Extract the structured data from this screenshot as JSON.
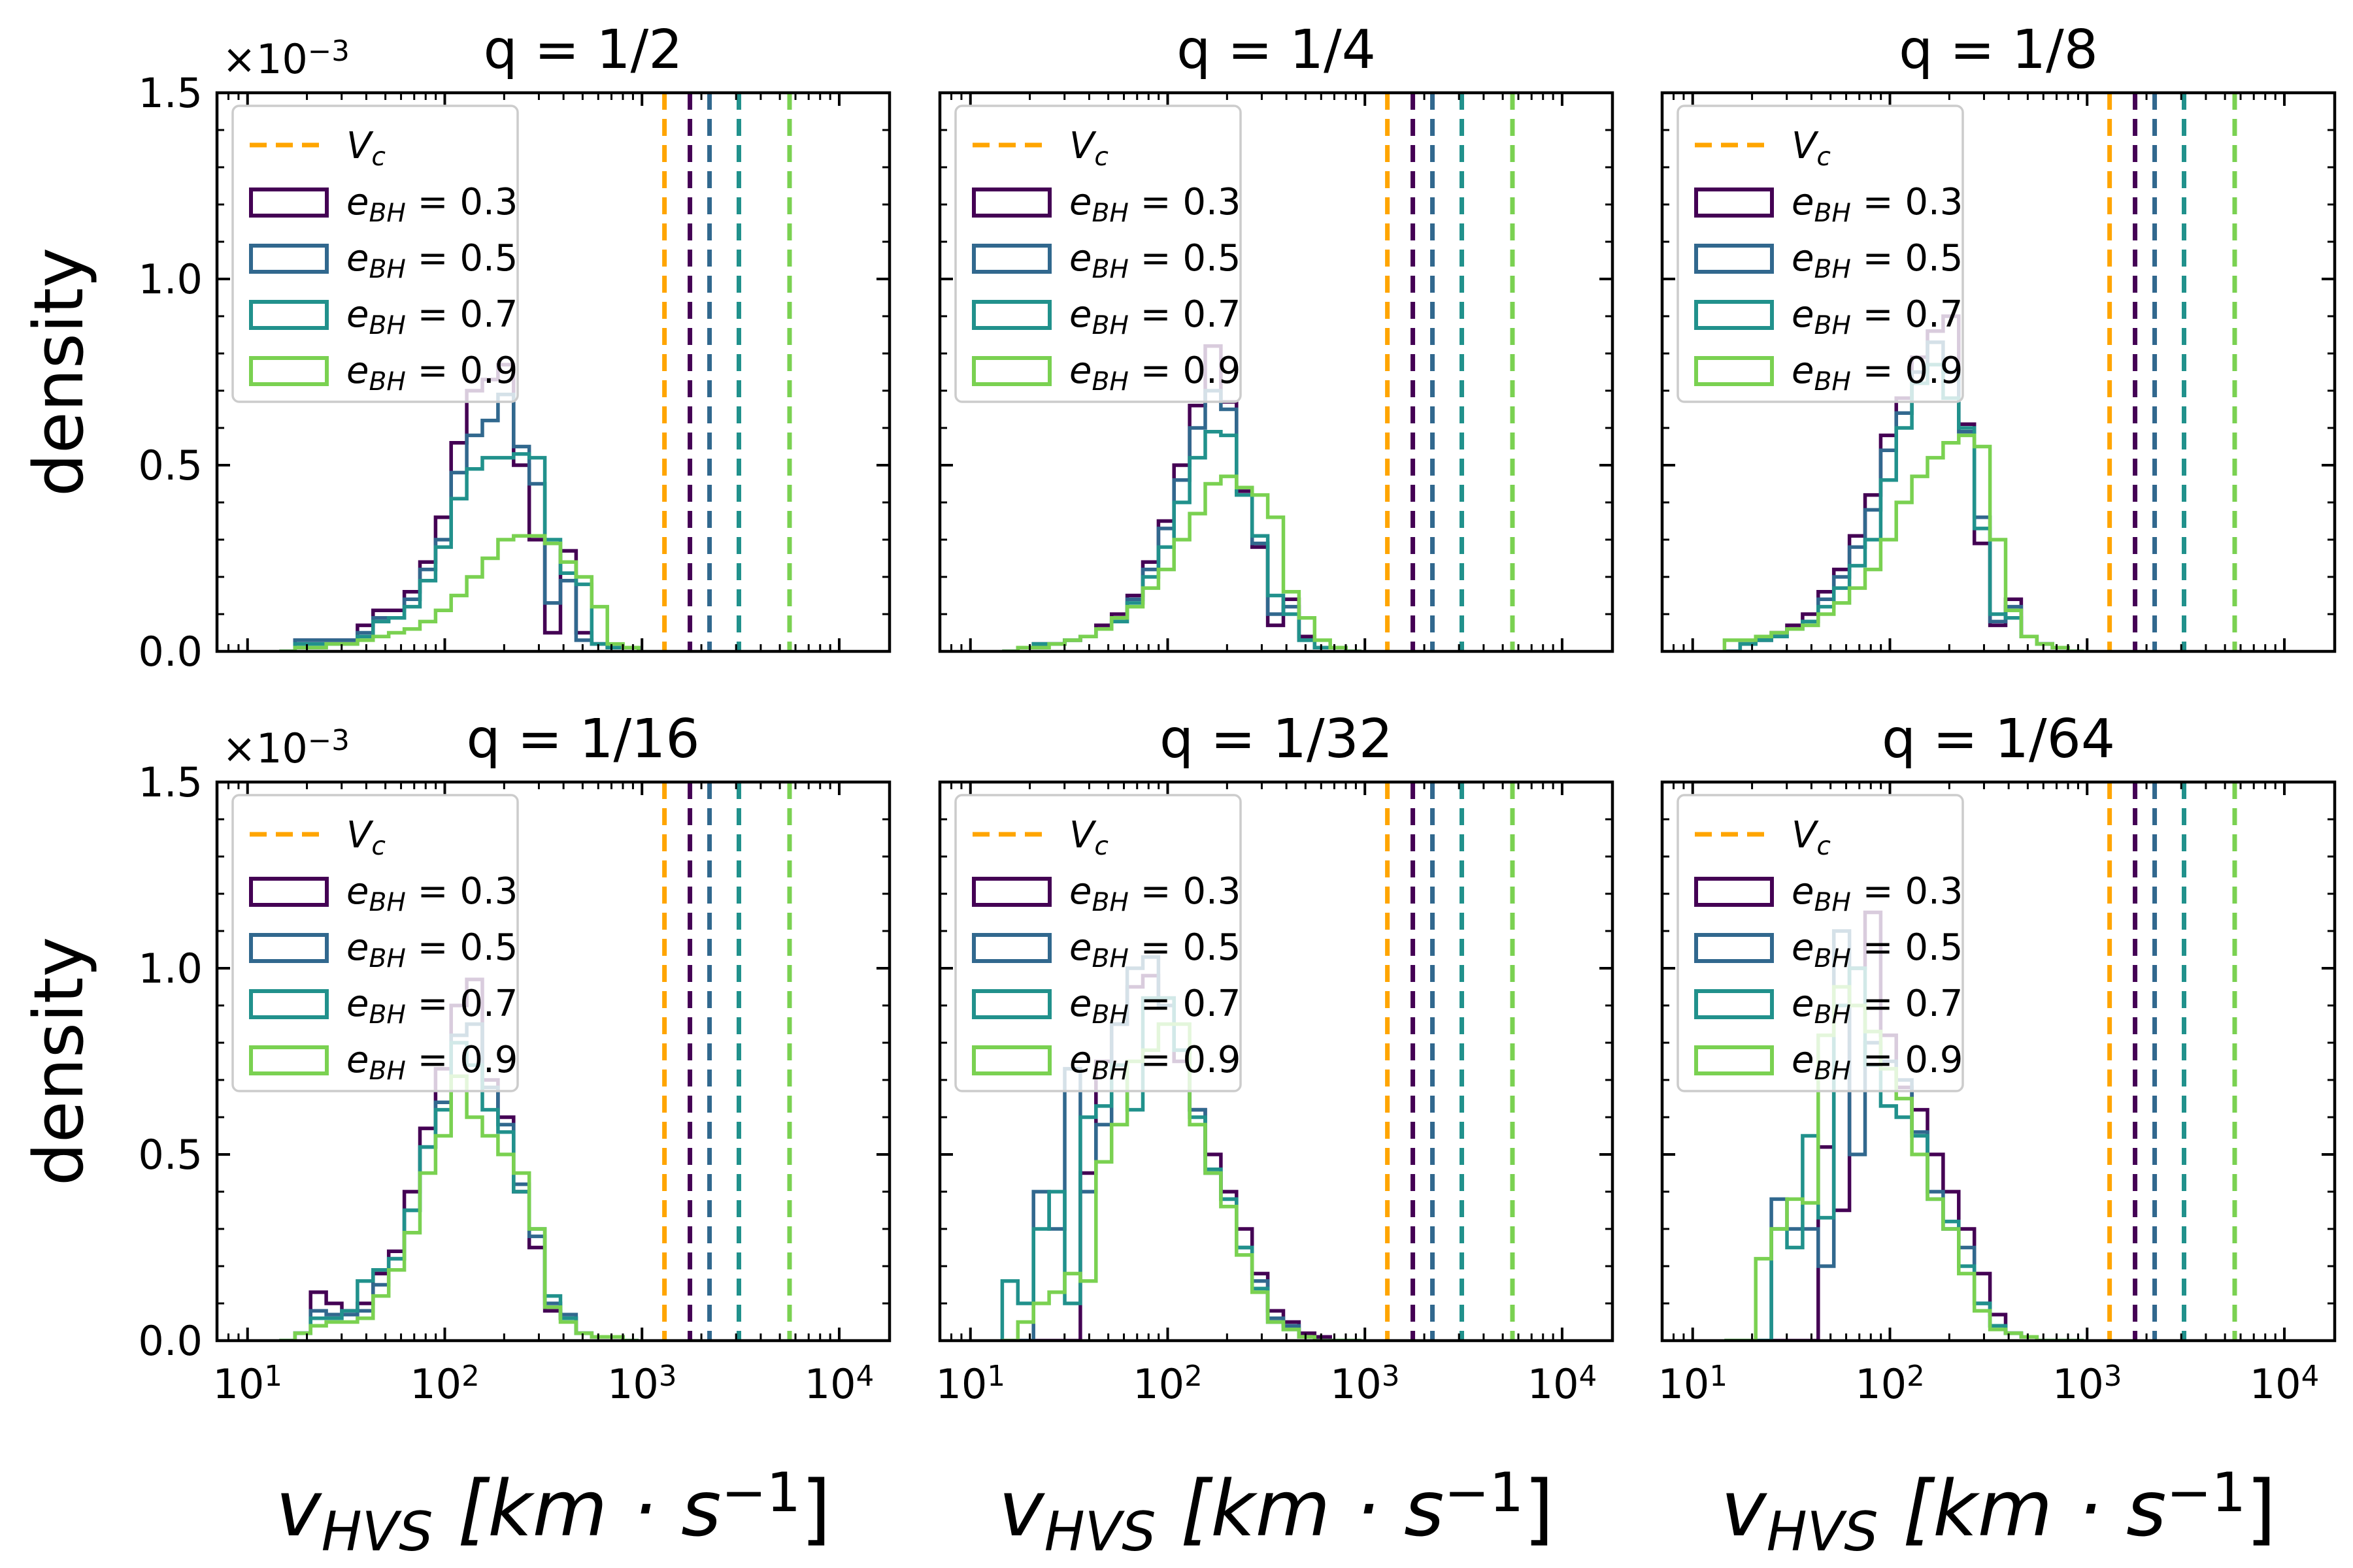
{
  "chart_data": {
    "type": "histogram-grid",
    "shared": {
      "xlabel": "v_HVS [km · s⁻¹]",
      "ylabel": "density",
      "xscale": "log",
      "xlim": [
        7,
        18000
      ],
      "ylim": [
        0,
        0.0015
      ],
      "y_scale_label": "×10⁻³",
      "xticks": [
        10,
        100,
        1000,
        10000
      ],
      "xtick_labels": [
        [
          "10",
          "1"
        ],
        [
          "10",
          "2"
        ],
        [
          "10",
          "3"
        ],
        [
          "10",
          "4"
        ]
      ],
      "yticks": [
        0,
        0.5,
        1.0,
        1.5
      ],
      "ytick_labels": [
        "0.0",
        "0.5",
        "1.0",
        "1.5"
      ],
      "legend_location": "upper-left",
      "legend_entries": [
        {
          "label": "V_c",
          "kind": "line",
          "color": "#FFA500"
        },
        {
          "label": "e_BH = 0.3",
          "kind": "patch",
          "color": "#440154"
        },
        {
          "label": "e_BH = 0.5",
          "kind": "patch",
          "color": "#31688E"
        },
        {
          "label": "e_BH = 0.7",
          "kind": "patch",
          "color": "#21918C"
        },
        {
          "label": "e_BH = 0.9",
          "kind": "patch",
          "color": "#7AD151"
        }
      ],
      "series_names": [
        "e_BH = 0.3",
        "e_BH = 0.5",
        "e_BH = 0.7",
        "e_BH = 0.9"
      ],
      "series_colors": [
        "#440154",
        "#31688E",
        "#21918C",
        "#7AD151"
      ],
      "vlines": [
        {
          "name": "V_c",
          "x": 1300,
          "color": "#FFA500"
        },
        {
          "name": "e_BH = 0.3",
          "x": 1750,
          "color": "#440154"
        },
        {
          "name": "e_BH = 0.5",
          "x": 2200,
          "color": "#31688E"
        },
        {
          "name": "e_BH = 0.7",
          "x": 3100,
          "color": "#21918C"
        },
        {
          "name": "e_BH = 0.9",
          "x": 5600,
          "color": "#7AD151"
        }
      ]
    },
    "panels": [
      {
        "title": "q = 1/2",
        "show_scale": true,
        "show_ylabels": true,
        "x_start": 14.5,
        "bin_ratio": 1.2,
        "series": [
          [
            0,
            3e-05,
            3e-05,
            3e-05,
            3e-05,
            7e-05,
            0.00011,
            0.00011,
            0.00016,
            0.00024,
            0.00036,
            0.00056,
            0.0007,
            0.00073,
            0.00077,
            0.0005,
            0.0003,
            5e-05,
            0.00027,
            5e-05,
            2e-05,
            1e-05,
            1e-05
          ],
          [
            0,
            3e-05,
            3e-05,
            3e-05,
            3e-05,
            5e-05,
            9e-05,
            9e-05,
            0.00014,
            0.00022,
            0.0003,
            0.00048,
            0.00058,
            0.00062,
            0.00069,
            0.00055,
            0.00045,
            0.00013,
            0.00019,
            3e-05,
            2e-05,
            1e-05,
            1e-05
          ],
          [
            0,
            2e-05,
            2e-05,
            2e-05,
            2e-05,
            4e-05,
            8e-05,
            9e-05,
            0.00012,
            0.00019,
            0.00028,
            0.00041,
            0.00049,
            0.00052,
            0.00052,
            0.00053,
            0.00052,
            0.0003,
            0.00021,
            0.00018,
            2e-05,
            1e-05,
            1e-05
          ],
          [
            0,
            1e-05,
            1e-05,
            2e-05,
            2e-05,
            3e-05,
            4e-05,
            5e-05,
            6e-05,
            8e-05,
            0.00011,
            0.00015,
            0.0002,
            0.00025,
            0.0003,
            0.00031,
            0.00031,
            0.00029,
            0.00024,
            0.0002,
            0.00012,
            2e-05,
            1e-05
          ]
        ]
      },
      {
        "title": "q = 1/4",
        "show_scale": false,
        "show_ylabels": false,
        "x_start": 14.5,
        "bin_ratio": 1.2,
        "series": [
          [
            0,
            1e-05,
            2e-05,
            2e-05,
            3e-05,
            4e-05,
            7e-05,
            0.0001,
            0.00015,
            0.00024,
            0.00035,
            0.0005,
            0.00066,
            0.00082,
            0.00067,
            0.00043,
            0.00028,
            7e-05,
            0.00014,
            4e-05,
            1e-05,
            1e-05,
            0
          ],
          [
            0,
            1e-05,
            2e-05,
            2e-05,
            3e-05,
            4e-05,
            6e-05,
            9e-05,
            0.00014,
            0.00022,
            0.00033,
            0.00046,
            0.0006,
            0.0007,
            0.00065,
            0.00044,
            0.00029,
            0.0001,
            0.00012,
            3e-05,
            1e-05,
            1e-05,
            0
          ],
          [
            0,
            1e-05,
            2e-05,
            2e-05,
            3e-05,
            4e-05,
            6e-05,
            8e-05,
            0.00013,
            0.0002,
            0.00028,
            0.0004,
            0.00052,
            0.00059,
            0.00058,
            0.00042,
            0.00031,
            0.00015,
            0.0001,
            3e-05,
            1e-05,
            1e-05,
            0
          ],
          [
            0,
            1e-05,
            1e-05,
            2e-05,
            3e-05,
            4e-05,
            6e-05,
            9e-05,
            0.00012,
            0.00017,
            0.00022,
            0.0003,
            0.00037,
            0.00045,
            0.00047,
            0.00044,
            0.00042,
            0.00036,
            0.00016,
            9e-05,
            3e-05,
            1e-05,
            0
          ]
        ]
      },
      {
        "title": "q = 1/8",
        "show_scale": false,
        "show_ylabels": false,
        "x_start": 14.5,
        "bin_ratio": 1.2,
        "series": [
          [
            0,
            2e-05,
            3e-05,
            5e-05,
            7e-05,
            0.0001,
            0.00016,
            0.00022,
            0.00031,
            0.00042,
            0.00058,
            0.00068,
            0.00079,
            0.00086,
            0.0009,
            0.00061,
            0.00029,
            7e-05,
            0.00014,
            4e-05,
            2e-05,
            1e-05,
            0
          ],
          [
            0,
            2e-05,
            3e-05,
            4e-05,
            6e-05,
            8e-05,
            0.00014,
            0.0002,
            0.00028,
            0.00038,
            0.00054,
            0.00064,
            0.00075,
            0.00083,
            0.00075,
            0.00059,
            0.00036,
            8e-05,
            0.00012,
            4e-05,
            2e-05,
            1e-05,
            0
          ],
          [
            0,
            2e-05,
            3e-05,
            4e-05,
            6e-05,
            8e-05,
            0.00012,
            0.00017,
            0.00023,
            0.0003,
            0.00046,
            0.0006,
            0.00072,
            0.00077,
            0.00068,
            0.0006,
            0.00033,
            0.0001,
            9e-05,
            4e-05,
            2e-05,
            1e-05,
            0
          ],
          [
            3e-05,
            3e-05,
            4e-05,
            5e-05,
            6e-05,
            7e-05,
            0.0001,
            0.00013,
            0.00017,
            0.00022,
            0.0003,
            0.0004,
            0.00047,
            0.00052,
            0.00056,
            0.00058,
            0.00055,
            0.0003,
            0.00011,
            4e-05,
            2e-05,
            1e-05,
            0
          ]
        ]
      },
      {
        "title": "q = 1/16",
        "show_scale": true,
        "show_ylabels": true,
        "x_start": 14.5,
        "bin_ratio": 1.2,
        "series": [
          [
            0,
            2e-05,
            0.00013,
            0.0001,
            8e-05,
            0.0001,
            0.00018,
            0.00024,
            0.0004,
            0.00057,
            0.00073,
            0.0009,
            0.00097,
            0.0007,
            0.0006,
            0.0004,
            0.00025,
            8e-05,
            6e-05,
            2e-05,
            1e-05,
            1e-05,
            0
          ],
          [
            0,
            2e-05,
            8e-05,
            7e-05,
            7e-05,
            8e-05,
            0.00015,
            0.00022,
            0.00035,
            0.00052,
            0.00064,
            0.00082,
            0.00085,
            0.00068,
            0.00058,
            0.00042,
            0.00028,
            0.0001,
            7e-05,
            2e-05,
            1e-05,
            1e-05,
            0
          ],
          [
            0,
            2e-05,
            6e-05,
            6e-05,
            8e-05,
            0.00016,
            0.00019,
            0.00022,
            0.00035,
            0.00052,
            0.00062,
            0.0008,
            0.00074,
            0.00062,
            0.00056,
            0.0004,
            0.0003,
            0.00012,
            6e-05,
            2e-05,
            1e-05,
            1e-05,
            0
          ],
          [
            0,
            2e-05,
            4e-05,
            5e-05,
            5e-05,
            6e-05,
            0.00012,
            0.00019,
            0.00029,
            0.00045,
            0.00055,
            0.00071,
            0.0006,
            0.00055,
            0.0005,
            0.00045,
            0.0003,
            9e-05,
            5e-05,
            2e-05,
            1e-05,
            1e-05,
            0
          ]
        ]
      },
      {
        "title": "q = 1/32",
        "show_scale": false,
        "show_ylabels": false,
        "x_start": 14.5,
        "bin_ratio": 1.2,
        "series": [
          [
            0,
            0,
            0,
            0,
            0,
            0.00045,
            0.00075,
            0.00085,
            0.00095,
            0.00098,
            0.00092,
            0.00075,
            0.00062,
            0.0005,
            0.0004,
            0.0003,
            0.00018,
            8e-05,
            5e-05,
            2e-05,
            1e-05,
            0,
            0
          ],
          [
            0,
            0,
            0.0004,
            0.0003,
            0.00073,
            0.0004,
            0.00058,
            0.00085,
            0.001,
            0.00103,
            0.0009,
            0.00078,
            0.00062,
            0.00045,
            0.00038,
            0.00025,
            0.00016,
            6e-05,
            4e-05,
            1e-05,
            0,
            0,
            0
          ],
          [
            0.00016,
            0.0001,
            0.0003,
            0.0004,
            0.0001,
            0.0006,
            0.00063,
            0.00074,
            0.00062,
            0.00092,
            0.00092,
            0.00078,
            0.0006,
            0.00046,
            0.00038,
            0.00025,
            0.00014,
            5e-05,
            3e-05,
            1e-05,
            0,
            0,
            0
          ],
          [
            0,
            5e-05,
            0.0001,
            0.00013,
            0.00018,
            0.00016,
            0.00048,
            0.00058,
            0.00075,
            0.00078,
            0.00085,
            0.00085,
            0.00058,
            0.00045,
            0.00036,
            0.00023,
            0.00013,
            5e-05,
            3e-05,
            1e-05,
            0,
            0,
            0
          ]
        ]
      },
      {
        "title": "q = 1/64",
        "show_scale": false,
        "show_ylabels": false,
        "x_start": 14.5,
        "bin_ratio": 1.2,
        "series": [
          [
            0,
            0,
            0,
            0,
            0,
            0,
            0.00052,
            0.00035,
            0.001,
            0.00115,
            0.00082,
            0.00068,
            0.00062,
            0.0005,
            0.0004,
            0.0003,
            0.00018,
            7e-05,
            2e-05,
            1e-05,
            0,
            0,
            0
          ],
          [
            0,
            0,
            0,
            0.00038,
            0.0003,
            0.0003,
            0.0002,
            0.0011,
            0.0005,
            0.0008,
            0.00075,
            0.0007,
            0.00056,
            0.0004,
            0.0003,
            0.00025,
            0.0001,
            4e-05,
            2e-05,
            1e-05,
            0,
            0,
            0
          ],
          [
            0,
            0,
            0,
            0.0003,
            0.00025,
            0.00055,
            0.00033,
            0.0009,
            0.001,
            0.00074,
            0.00063,
            0.0006,
            0.00055,
            0.00038,
            0.00032,
            0.0002,
            0.0001,
            4e-05,
            2e-05,
            1e-05,
            0,
            0,
            0
          ],
          [
            0,
            0,
            0.00022,
            0.0003,
            0.00038,
            0.00037,
            0.00082,
            0.00095,
            0.0009,
            0.00083,
            0.00073,
            0.00065,
            0.0005,
            0.00038,
            0.0003,
            0.00018,
            8e-05,
            3e-05,
            2e-05,
            1e-05,
            0,
            0,
            0
          ]
        ]
      }
    ]
  }
}
